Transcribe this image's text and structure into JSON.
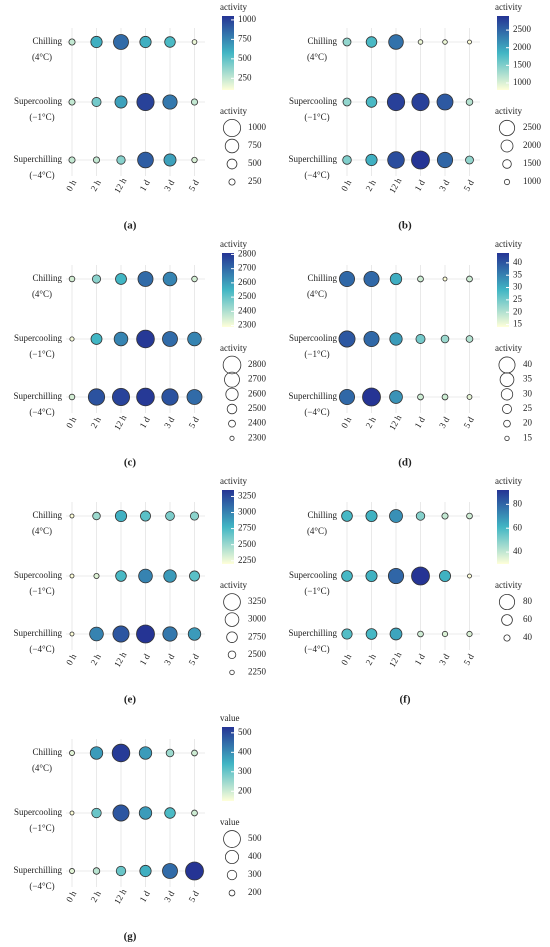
{
  "chart_data": [
    {
      "type": "dotplot",
      "label": "(a)",
      "x": [
        "0 h",
        "2 h",
        "12 h",
        "1 d",
        "3 d",
        "5 d"
      ],
      "rows": [
        "Chilling",
        "Supercooling",
        "Superchilling"
      ],
      "conditions": [
        "(4°C)",
        "(−1°C)",
        "(−4°C)"
      ],
      "values": [
        [
          250,
          600,
          850,
          600,
          550,
          150
        ],
        [
          250,
          450,
          650,
          1000,
          800,
          250
        ],
        [
          250,
          250,
          400,
          900,
          650,
          200
        ]
      ],
      "lim": [
        100,
        1050
      ],
      "color_title": "activity",
      "size_title": "activity",
      "ticks": [
        250,
        500,
        750,
        1000
      ],
      "colors": [
        "#ffffd9",
        "#41b6c4",
        "#253494"
      ]
    },
    {
      "type": "dotplot",
      "label": "(b)",
      "x": [
        "0 h",
        "2 h",
        "12 h",
        "1 d",
        "3 d",
        "5 d"
      ],
      "rows": [
        "Chilling",
        "Supercooling",
        "Superchilling"
      ],
      "conditions": [
        "(4°C)",
        "(−1°C)",
        "(−4°C)"
      ],
      "values": [
        [
          1400,
          1800,
          2400,
          900,
          900,
          800
        ],
        [
          1400,
          1800,
          2800,
          2800,
          2600,
          1200
        ],
        [
          1500,
          1900,
          2700,
          2900,
          2500,
          1400
        ]
      ],
      "lim": [
        800,
        2900
      ],
      "color_title": "activity",
      "size_title": "activity",
      "ticks": [
        1000,
        1500,
        2000,
        2500
      ],
      "colors": [
        "#ffffd9",
        "#41b6c4",
        "#253494"
      ]
    },
    {
      "type": "dotplot",
      "label": "(c)",
      "x": [
        "0 h",
        "2 h",
        "12 h",
        "1 d",
        "3 d",
        "5 d"
      ],
      "rows": [
        "Chilling",
        "Supercooling",
        "Superchilling"
      ],
      "conditions": [
        "(4°C)",
        "(−1°C)",
        "(−4°C)"
      ],
      "values": [
        [
          2350,
          2450,
          2550,
          2700,
          2650,
          2350
        ],
        [
          2300,
          2550,
          2650,
          2800,
          2700,
          2650
        ],
        [
          2350,
          2750,
          2780,
          2800,
          2750,
          2700
        ]
      ],
      "lim": [
        2290,
        2810
      ],
      "color_title": "activity",
      "size_title": "activity",
      "ticks": [
        2300,
        2400,
        2500,
        2600,
        2700,
        2800
      ],
      "colors": [
        "#ffffd9",
        "#41b6c4",
        "#253494"
      ]
    },
    {
      "type": "dotplot",
      "label": "(d)",
      "x": [
        "0 h",
        "2 h",
        "12 h",
        "1 d",
        "3 d",
        "5 d"
      ],
      "rows": [
        "Chilling",
        "Supercooling",
        "Superchilling"
      ],
      "conditions": [
        "(4°C)",
        "(−1°C)",
        "(−4°C)"
      ],
      "values": [
        [
          38,
          38,
          30,
          18,
          14,
          18
        ],
        [
          40,
          38,
          32,
          25,
          22,
          20
        ],
        [
          38,
          44,
          33,
          18,
          18,
          16
        ]
      ],
      "lim": [
        14,
        44
      ],
      "color_title": "activity",
      "size_title": "activity",
      "ticks": [
        15,
        20,
        25,
        30,
        35,
        40
      ],
      "colors": [
        "#ffffd9",
        "#41b6c4",
        "#253494"
      ]
    },
    {
      "type": "dotplot",
      "label": "(e)",
      "x": [
        "0 h",
        "2 h",
        "12 h",
        "1 d",
        "3 d",
        "5 d"
      ],
      "rows": [
        "Chilling",
        "Supercooling",
        "Superchilling"
      ],
      "conditions": [
        "(4°C)",
        "(−1°C)",
        "(−4°C)"
      ],
      "values": [
        [
          2200,
          2500,
          2800,
          2700,
          2600,
          2550
        ],
        [
          2200,
          2300,
          2750,
          3000,
          2900,
          2700
        ],
        [
          2200,
          3000,
          3200,
          3350,
          3050,
          2900
        ]
      ],
      "lim": [
        2200,
        3350
      ],
      "color_title": "activity",
      "size_title": "activity",
      "ticks": [
        2250,
        2500,
        2750,
        3000,
        3250
      ],
      "colors": [
        "#ffffd9",
        "#41b6c4",
        "#253494"
      ]
    },
    {
      "type": "dotplot",
      "label": "(f)",
      "x": [
        "0 h",
        "2 h",
        "12 h",
        "1 d",
        "3 d",
        "5 d"
      ],
      "rows": [
        "Chilling",
        "Supercooling",
        "Superchilling"
      ],
      "conditions": [
        "(4°C)",
        "(−1°C)",
        "(−4°C)"
      ],
      "values": [
        [
          60,
          62,
          70,
          50,
          40,
          38
        ],
        [
          60,
          62,
          80,
          92,
          62,
          30
        ],
        [
          58,
          60,
          65,
          38,
          36,
          36
        ]
      ],
      "lim": [
        30,
        92
      ],
      "color_title": "activity",
      "size_title": "activity",
      "ticks": [
        40,
        60,
        80
      ],
      "colors": [
        "#ffffd9",
        "#41b6c4",
        "#253494"
      ]
    },
    {
      "type": "dotplot",
      "label": "(g)",
      "x": [
        "0 h",
        "2 h",
        "12 h",
        "1 d",
        "3 d",
        "5 d"
      ],
      "rows": [
        "Chilling",
        "Supercooling",
        "Superchilling"
      ],
      "conditions": [
        "(4°C)",
        "(−1°C)",
        "(−4°C)"
      ],
      "values": [
        [
          180,
          380,
          520,
          380,
          250,
          200
        ],
        [
          150,
          300,
          480,
          380,
          330,
          200
        ],
        [
          180,
          220,
          300,
          350,
          450,
          530
        ]
      ],
      "lim": [
        150,
        530
      ],
      "color_title": "value",
      "size_title": "value",
      "ticks": [
        200,
        300,
        400,
        500
      ],
      "colors": [
        "#ffffd9",
        "#41b6c4",
        "#253494"
      ]
    }
  ]
}
